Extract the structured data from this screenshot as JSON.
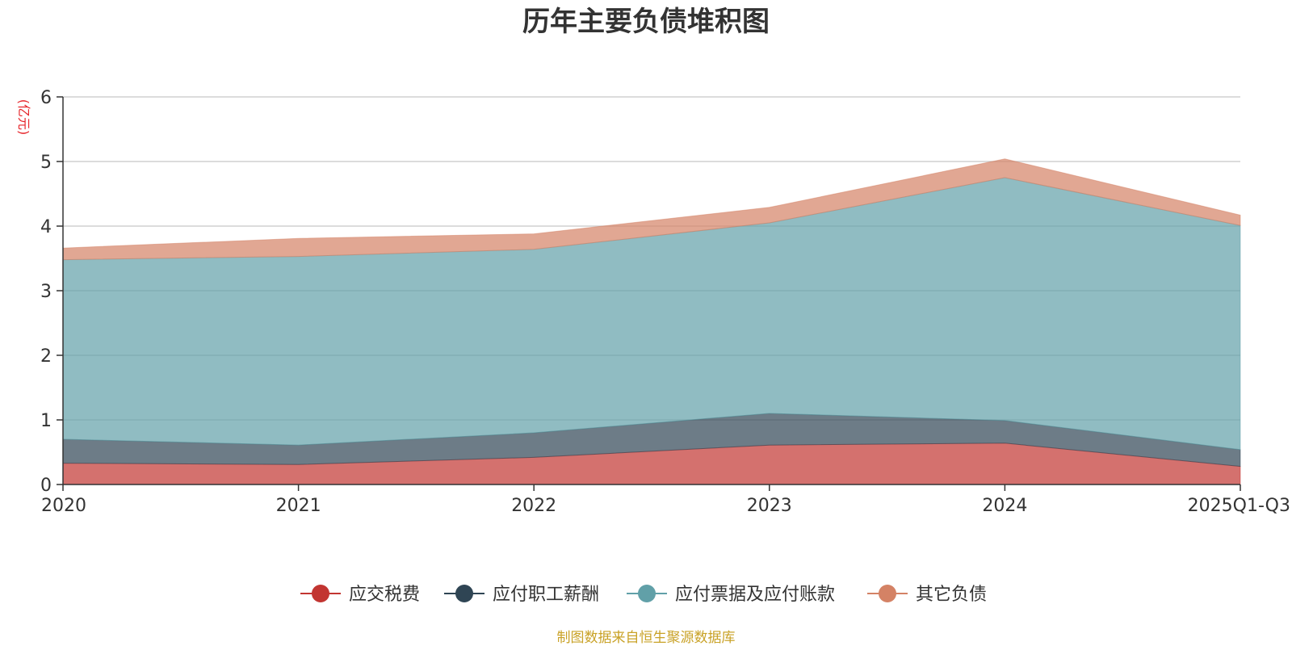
{
  "chart_data": {
    "type": "area",
    "stacked": true,
    "title": "历年主要负债堆积图",
    "ylabel": "(亿元)",
    "xlabel": "",
    "categories": [
      "2020",
      "2021",
      "2022",
      "2023",
      "2024",
      "2025Q1-Q3"
    ],
    "ylim": [
      0,
      6
    ],
    "yticks": [
      0,
      1,
      2,
      3,
      4,
      5,
      6
    ],
    "grid": true,
    "legend_position": "bottom",
    "series": [
      {
        "name": "应交税费",
        "color": "#c23531",
        "values": [
          0.33,
          0.31,
          0.42,
          0.61,
          0.64,
          0.28
        ]
      },
      {
        "name": "应付职工薪酬",
        "color": "#2f4554",
        "values": [
          0.37,
          0.3,
          0.38,
          0.49,
          0.35,
          0.26
        ]
      },
      {
        "name": "应付票据及应付账款",
        "color": "#61a0a8",
        "values": [
          2.78,
          2.92,
          2.84,
          2.95,
          3.76,
          3.47
        ]
      },
      {
        "name": "其它负债",
        "color": "#d48265",
        "values": [
          0.18,
          0.28,
          0.24,
          0.24,
          0.29,
          0.16
        ]
      }
    ],
    "source": "制图数据来自恒生聚源数据库"
  }
}
